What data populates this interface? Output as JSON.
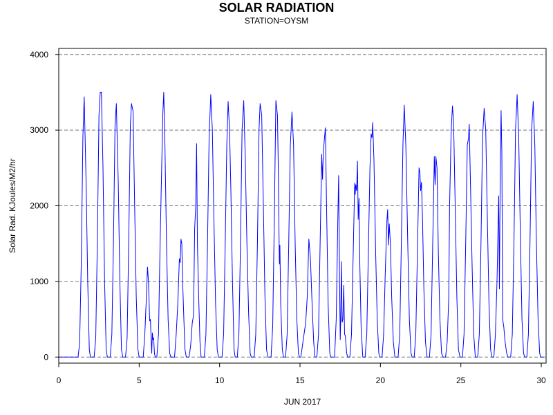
{
  "chart_data": {
    "type": "line",
    "title": "SOLAR RADIATION",
    "subtitle": "STATION=OYSM",
    "xlabel": "JUN 2017",
    "ylabel": "Solar Rad. KJoules/M2/hr",
    "xlim": [
      0,
      30.3
    ],
    "ylim": [
      -80,
      4080
    ],
    "xticks": [
      0,
      5,
      10,
      15,
      20,
      25,
      30
    ],
    "yticks": [
      0,
      1000,
      2000,
      3000,
      4000
    ],
    "grid": "horizontal-dashed",
    "line_color": "#0000ff",
    "series": [
      {
        "points": [
          [
            1.2,
            0
          ],
          [
            1.3,
            180
          ],
          [
            1.4,
            1250
          ],
          [
            1.5,
            2900
          ],
          [
            1.58,
            3440
          ],
          [
            1.7,
            2300
          ],
          [
            1.8,
            1000
          ],
          [
            1.9,
            100
          ],
          [
            1.97,
            0
          ],
          [
            2.2,
            0
          ],
          [
            2.3,
            250
          ],
          [
            2.4,
            1500
          ],
          [
            2.5,
            3200
          ],
          [
            2.58,
            3500
          ],
          [
            2.65,
            3500
          ],
          [
            2.75,
            2500
          ],
          [
            2.85,
            1000
          ],
          [
            2.95,
            100
          ],
          [
            3.02,
            0
          ],
          [
            3.2,
            0
          ],
          [
            3.3,
            300
          ],
          [
            3.4,
            1500
          ],
          [
            3.5,
            3050
          ],
          [
            3.58,
            3350
          ],
          [
            3.7,
            2300
          ],
          [
            3.8,
            1000
          ],
          [
            3.9,
            100
          ],
          [
            3.98,
            0
          ],
          [
            4.15,
            0
          ],
          [
            4.25,
            250
          ],
          [
            4.35,
            1500
          ],
          [
            4.45,
            3050
          ],
          [
            4.52,
            3350
          ],
          [
            4.62,
            3250
          ],
          [
            4.72,
            2000
          ],
          [
            4.82,
            800
          ],
          [
            4.92,
            100
          ],
          [
            5.0,
            0
          ],
          [
            5.25,
            0
          ],
          [
            5.35,
            300
          ],
          [
            5.45,
            800
          ],
          [
            5.52,
            1190
          ],
          [
            5.58,
            1000
          ],
          [
            5.65,
            480
          ],
          [
            5.7,
            500
          ],
          [
            5.75,
            200
          ],
          [
            5.78,
            50
          ],
          [
            5.82,
            320
          ],
          [
            5.86,
            230
          ],
          [
            5.9,
            250
          ],
          [
            5.95,
            50
          ],
          [
            6.0,
            0
          ],
          [
            6.1,
            0
          ],
          [
            6.2,
            300
          ],
          [
            6.3,
            1500
          ],
          [
            6.4,
            2500
          ],
          [
            6.47,
            3200
          ],
          [
            6.53,
            3500
          ],
          [
            6.6,
            2800
          ],
          [
            6.7,
            1500
          ],
          [
            6.8,
            500
          ],
          [
            6.9,
            50
          ],
          [
            6.97,
            0
          ],
          [
            7.2,
            0
          ],
          [
            7.3,
            300
          ],
          [
            7.4,
            700
          ],
          [
            7.5,
            1300
          ],
          [
            7.55,
            1250
          ],
          [
            7.6,
            1560
          ],
          [
            7.65,
            1500
          ],
          [
            7.7,
            1000
          ],
          [
            7.78,
            500
          ],
          [
            7.85,
            100
          ],
          [
            7.93,
            0
          ],
          [
            8.1,
            0
          ],
          [
            8.2,
            150
          ],
          [
            8.3,
            450
          ],
          [
            8.38,
            550
          ],
          [
            8.45,
            1700
          ],
          [
            8.52,
            2000
          ],
          [
            8.57,
            2820
          ],
          [
            8.62,
            1500
          ],
          [
            8.7,
            800
          ],
          [
            8.78,
            200
          ],
          [
            8.85,
            0
          ],
          [
            9.05,
            0
          ],
          [
            9.15,
            300
          ],
          [
            9.25,
            1500
          ],
          [
            9.35,
            2900
          ],
          [
            9.45,
            3470
          ],
          [
            9.55,
            3000
          ],
          [
            9.65,
            1800
          ],
          [
            9.75,
            700
          ],
          [
            9.85,
            100
          ],
          [
            9.93,
            0
          ],
          [
            10.15,
            0
          ],
          [
            10.25,
            300
          ],
          [
            10.35,
            1500
          ],
          [
            10.45,
            2800
          ],
          [
            10.53,
            3380
          ],
          [
            10.62,
            3000
          ],
          [
            10.7,
            2200
          ],
          [
            10.8,
            1000
          ],
          [
            10.9,
            100
          ],
          [
            10.97,
            0
          ],
          [
            11.1,
            0
          ],
          [
            11.2,
            300
          ],
          [
            11.3,
            1500
          ],
          [
            11.4,
            3000
          ],
          [
            11.5,
            3390
          ],
          [
            11.6,
            2600
          ],
          [
            11.7,
            1500
          ],
          [
            11.8,
            600
          ],
          [
            11.9,
            50
          ],
          [
            11.97,
            0
          ],
          [
            12.15,
            0
          ],
          [
            12.25,
            300
          ],
          [
            12.35,
            1500
          ],
          [
            12.45,
            3000
          ],
          [
            12.52,
            3350
          ],
          [
            12.62,
            3200
          ],
          [
            12.72,
            2000
          ],
          [
            12.82,
            800
          ],
          [
            12.92,
            100
          ],
          [
            13.0,
            0
          ],
          [
            13.2,
            0
          ],
          [
            13.3,
            400
          ],
          [
            13.4,
            1800
          ],
          [
            13.5,
            3390
          ],
          [
            13.6,
            3200
          ],
          [
            13.65,
            2500
          ],
          [
            13.7,
            1500
          ],
          [
            13.72,
            1230
          ],
          [
            13.75,
            1480
          ],
          [
            13.8,
            700
          ],
          [
            13.9,
            100
          ],
          [
            13.97,
            0
          ],
          [
            14.1,
            0
          ],
          [
            14.2,
            300
          ],
          [
            14.3,
            1500
          ],
          [
            14.4,
            2800
          ],
          [
            14.5,
            3240
          ],
          [
            14.6,
            2800
          ],
          [
            14.7,
            1500
          ],
          [
            14.8,
            500
          ],
          [
            14.9,
            50
          ],
          [
            14.97,
            0
          ],
          [
            15.05,
            0
          ],
          [
            15.15,
            150
          ],
          [
            15.25,
            300
          ],
          [
            15.35,
            450
          ],
          [
            15.45,
            800
          ],
          [
            15.55,
            1560
          ],
          [
            15.65,
            1300
          ],
          [
            15.75,
            700
          ],
          [
            15.85,
            200
          ],
          [
            15.93,
            0
          ],
          [
            16.05,
            0
          ],
          [
            16.15,
            300
          ],
          [
            16.25,
            1500
          ],
          [
            16.35,
            2680
          ],
          [
            16.4,
            2350
          ],
          [
            16.45,
            2700
          ],
          [
            16.52,
            2900
          ],
          [
            16.58,
            3030
          ],
          [
            16.65,
            2000
          ],
          [
            16.75,
            700
          ],
          [
            16.85,
            50
          ],
          [
            16.93,
            0
          ],
          [
            17.15,
            0
          ],
          [
            17.25,
            500
          ],
          [
            17.35,
            1800
          ],
          [
            17.4,
            2400
          ],
          [
            17.45,
            1200
          ],
          [
            17.5,
            230
          ],
          [
            17.53,
            500
          ],
          [
            17.57,
            1260
          ],
          [
            17.62,
            460
          ],
          [
            17.67,
            500
          ],
          [
            17.72,
            950
          ],
          [
            17.77,
            300
          ],
          [
            17.82,
            280
          ],
          [
            17.9,
            50
          ],
          [
            17.97,
            0
          ],
          [
            18.1,
            0
          ],
          [
            18.2,
            300
          ],
          [
            18.3,
            1300
          ],
          [
            18.4,
            2300
          ],
          [
            18.43,
            2150
          ],
          [
            18.47,
            2280
          ],
          [
            18.52,
            2200
          ],
          [
            18.57,
            2590
          ],
          [
            18.62,
            1820
          ],
          [
            18.67,
            2100
          ],
          [
            18.72,
            1200
          ],
          [
            18.8,
            400
          ],
          [
            18.9,
            0
          ],
          [
            19.05,
            0
          ],
          [
            19.15,
            300
          ],
          [
            19.25,
            1400
          ],
          [
            19.35,
            2500
          ],
          [
            19.42,
            2950
          ],
          [
            19.48,
            2900
          ],
          [
            19.52,
            3100
          ],
          [
            19.6,
            2600
          ],
          [
            19.7,
            1400
          ],
          [
            19.8,
            500
          ],
          [
            19.9,
            50
          ],
          [
            19.97,
            0
          ],
          [
            20.1,
            0
          ],
          [
            20.2,
            300
          ],
          [
            20.3,
            1100
          ],
          [
            20.4,
            1800
          ],
          [
            20.45,
            1950
          ],
          [
            20.5,
            1480
          ],
          [
            20.55,
            1760
          ],
          [
            20.62,
            1500
          ],
          [
            20.7,
            800
          ],
          [
            20.8,
            200
          ],
          [
            20.9,
            0
          ],
          [
            21.1,
            0
          ],
          [
            21.2,
            300
          ],
          [
            21.3,
            1500
          ],
          [
            21.4,
            2800
          ],
          [
            21.48,
            3330
          ],
          [
            21.58,
            2800
          ],
          [
            21.7,
            1500
          ],
          [
            21.8,
            500
          ],
          [
            21.9,
            50
          ],
          [
            21.97,
            0
          ],
          [
            22.1,
            0
          ],
          [
            22.2,
            300
          ],
          [
            22.3,
            1400
          ],
          [
            22.4,
            2500
          ],
          [
            22.45,
            2450
          ],
          [
            22.5,
            2200
          ],
          [
            22.55,
            2310
          ],
          [
            22.62,
            1800
          ],
          [
            22.7,
            900
          ],
          [
            22.8,
            200
          ],
          [
            22.9,
            0
          ],
          [
            23.05,
            0
          ],
          [
            23.15,
            300
          ],
          [
            23.25,
            1500
          ],
          [
            23.35,
            2650
          ],
          [
            23.4,
            2280
          ],
          [
            23.45,
            2650
          ],
          [
            23.52,
            2500
          ],
          [
            23.6,
            1400
          ],
          [
            23.7,
            500
          ],
          [
            23.8,
            50
          ],
          [
            23.9,
            0
          ],
          [
            24.05,
            0
          ],
          [
            24.15,
            200
          ],
          [
            24.25,
            780
          ],
          [
            24.3,
            2000
          ],
          [
            24.4,
            3000
          ],
          [
            24.48,
            3320
          ],
          [
            24.55,
            3100
          ],
          [
            24.65,
            2000
          ],
          [
            24.75,
            800
          ],
          [
            24.85,
            100
          ],
          [
            24.95,
            0
          ],
          [
            25.1,
            0
          ],
          [
            25.2,
            300
          ],
          [
            25.3,
            1500
          ],
          [
            25.4,
            2800
          ],
          [
            25.48,
            2900
          ],
          [
            25.52,
            3080
          ],
          [
            25.6,
            2300
          ],
          [
            25.7,
            1200
          ],
          [
            25.8,
            300
          ],
          [
            25.9,
            0
          ],
          [
            26.05,
            0
          ],
          [
            26.15,
            300
          ],
          [
            26.25,
            1500
          ],
          [
            26.35,
            2900
          ],
          [
            26.45,
            3290
          ],
          [
            26.55,
            3000
          ],
          [
            26.65,
            1800
          ],
          [
            26.75,
            700
          ],
          [
            26.85,
            100
          ],
          [
            26.93,
            0
          ],
          [
            27.05,
            0
          ],
          [
            27.15,
            300
          ],
          [
            27.25,
            1000
          ],
          [
            27.35,
            2130
          ],
          [
            27.4,
            900
          ],
          [
            27.45,
            2500
          ],
          [
            27.5,
            3260
          ],
          [
            27.55,
            2700
          ],
          [
            27.6,
            500
          ],
          [
            27.67,
            400
          ],
          [
            27.75,
            200
          ],
          [
            27.85,
            50
          ],
          [
            27.93,
            0
          ],
          [
            28.1,
            0
          ],
          [
            28.2,
            300
          ],
          [
            28.3,
            1500
          ],
          [
            28.4,
            3000
          ],
          [
            28.5,
            3470
          ],
          [
            28.6,
            2900
          ],
          [
            28.7,
            1600
          ],
          [
            28.8,
            500
          ],
          [
            28.9,
            50
          ],
          [
            28.97,
            0
          ],
          [
            29.1,
            0
          ],
          [
            29.2,
            300
          ],
          [
            29.3,
            1500
          ],
          [
            29.4,
            3000
          ],
          [
            29.5,
            3380
          ],
          [
            29.6,
            2800
          ],
          [
            29.7,
            1500
          ],
          [
            29.8,
            500
          ],
          [
            29.9,
            50
          ],
          [
            29.97,
            0
          ]
        ]
      }
    ]
  }
}
